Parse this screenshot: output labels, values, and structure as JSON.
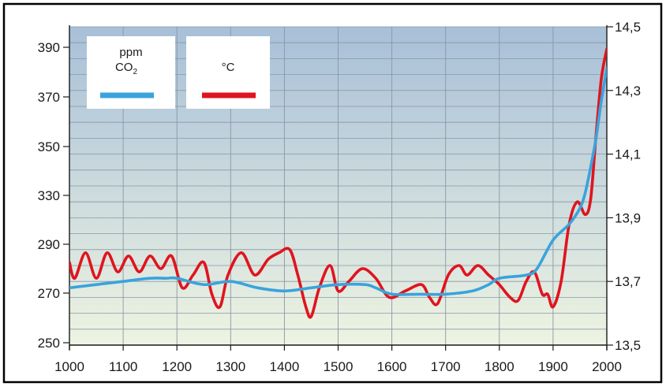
{
  "chart_data": {
    "type": "line",
    "x_ticks": [
      "1000",
      "1100",
      "1200",
      "1300",
      "1400",
      "1500",
      "1600",
      "1700",
      "1800",
      "1900",
      "2000"
    ],
    "xlim": [
      1000,
      2000
    ],
    "y_left_ticks": [
      "250",
      "270",
      "290",
      "330",
      "350",
      "370",
      "390"
    ],
    "y_left_tick_values": [
      250,
      270,
      290,
      330,
      350,
      370,
      390
    ],
    "y_right_ticks": [
      "13,5",
      "13,7",
      "13,9",
      "14,1",
      "14,3",
      "14,5"
    ],
    "y_right_tick_values": [
      13.5,
      13.7,
      13.9,
      14.1,
      14.3,
      14.5
    ],
    "y_right_lim": [
      13.5,
      14.5
    ],
    "grid": true,
    "legend": {
      "co2_label_line1": "ppm",
      "co2_label_line2": "CO",
      "co2_label_sub": "2",
      "temp_label": "°C"
    },
    "colors": {
      "co2": "#3aa3dc",
      "temperature": "#e0141e",
      "bg_top": "#a7bfd8",
      "bg_bottom": "#eef4e2",
      "grid": "#8a97a3"
    },
    "series": [
      {
        "key": "co2",
        "axis": "right",
        "x": [
          1000,
          1050,
          1100,
          1150,
          1180,
          1200,
          1250,
          1300,
          1350,
          1400,
          1450,
          1500,
          1550,
          1570,
          1600,
          1650,
          1700,
          1750,
          1780,
          1800,
          1850,
          1870,
          1900,
          1930,
          1950,
          1960,
          1970,
          1980,
          1990,
          2000
        ],
        "y": [
          13.68,
          13.69,
          13.7,
          13.71,
          13.71,
          13.71,
          13.69,
          13.7,
          13.68,
          13.67,
          13.68,
          13.69,
          13.69,
          13.68,
          13.66,
          13.66,
          13.66,
          13.67,
          13.69,
          13.71,
          13.72,
          13.74,
          13.83,
          13.88,
          13.93,
          13.98,
          14.06,
          14.15,
          14.27,
          14.37
        ]
      },
      {
        "key": "temperature",
        "axis": "right",
        "x": [
          1000,
          1010,
          1030,
          1050,
          1070,
          1090,
          1110,
          1130,
          1150,
          1170,
          1190,
          1210,
          1230,
          1250,
          1265,
          1280,
          1295,
          1320,
          1345,
          1370,
          1390,
          1410,
          1425,
          1440,
          1450,
          1465,
          1485,
          1500,
          1520,
          1545,
          1570,
          1595,
          1625,
          1655,
          1670,
          1685,
          1705,
          1725,
          1740,
          1760,
          1780,
          1800,
          1820,
          1835,
          1850,
          1865,
          1880,
          1890,
          1900,
          1915,
          1930,
          1945,
          1960,
          1970,
          1980,
          1990,
          2000
        ],
        "y": [
          13.76,
          13.71,
          13.79,
          13.71,
          13.79,
          13.73,
          13.78,
          13.73,
          13.78,
          13.74,
          13.78,
          13.68,
          13.72,
          13.76,
          13.66,
          13.62,
          13.72,
          13.79,
          13.72,
          13.77,
          13.79,
          13.8,
          13.72,
          13.62,
          13.59,
          13.68,
          13.75,
          13.67,
          13.7,
          13.74,
          13.71,
          13.65,
          13.67,
          13.69,
          13.65,
          13.63,
          13.72,
          13.75,
          13.72,
          13.75,
          13.72,
          13.69,
          13.65,
          13.64,
          13.7,
          13.73,
          13.66,
          13.66,
          13.62,
          13.7,
          13.88,
          13.95,
          13.91,
          13.96,
          14.16,
          14.34,
          14.43
        ]
      }
    ]
  }
}
